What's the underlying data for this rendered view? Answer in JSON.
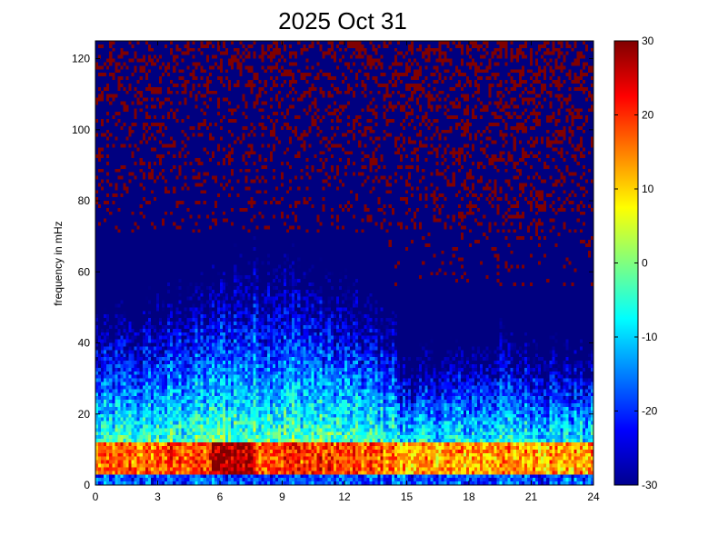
{
  "chart_data": {
    "type": "heatmap",
    "title": "2025 Oct 31",
    "xlabel": "",
    "ylabel": "frequency in mHz",
    "xlim": [
      0,
      24
    ],
    "ylim": [
      0,
      125
    ],
    "x_ticks": [
      "0",
      "3",
      "6",
      "9",
      "12",
      "15",
      "18",
      "21",
      "24"
    ],
    "y_ticks": [
      "0",
      "20",
      "40",
      "60",
      "80",
      "100",
      "120"
    ],
    "colorbar": {
      "colormap": "jet",
      "range": [
        -30,
        30
      ],
      "ticks": [
        "-30",
        "-20",
        "-10",
        "0",
        "10",
        "20",
        "30"
      ]
    },
    "grid": false
  }
}
